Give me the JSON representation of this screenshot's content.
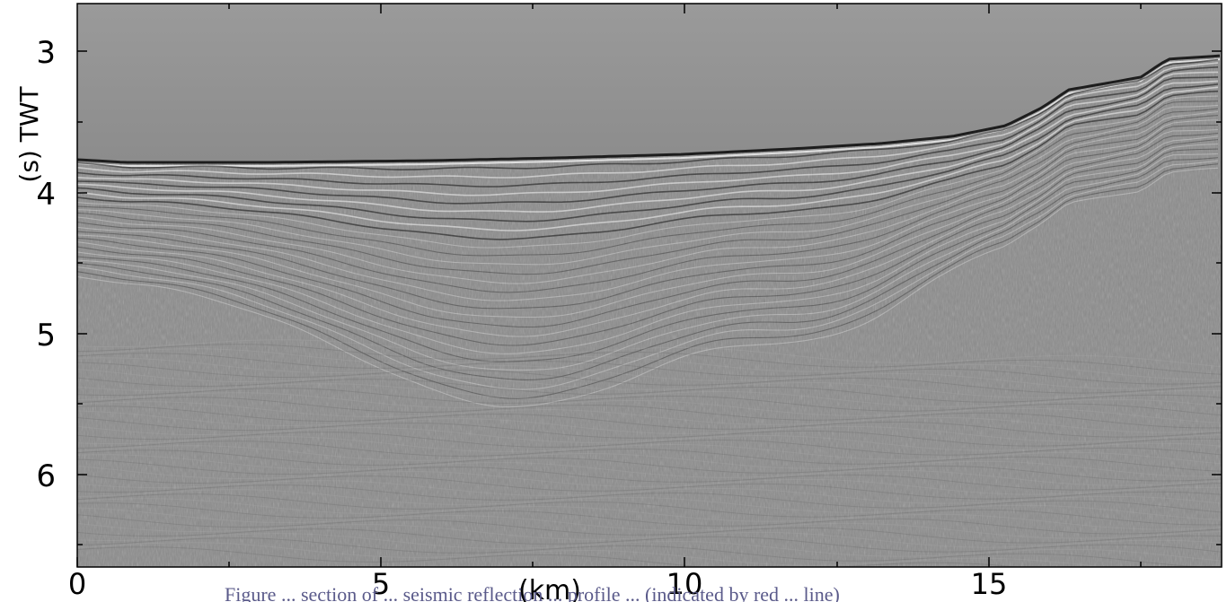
{
  "figure": {
    "y_axis_label": "(s) TWT",
    "x_axis_label": "(km)",
    "y_ticks": [
      "3",
      "4",
      "5",
      "6"
    ],
    "x_ticks": [
      "0",
      "5",
      "10",
      "15"
    ],
    "caption_fragment": "Figure ... section of ... seismic reflection ... profile ... (indicated by red ... line)"
  },
  "colors": {
    "background": "#ffffff",
    "seismic_base": "#8a8a8a",
    "water_column": "#9a9a9a",
    "reflector_dark": "#111111",
    "reflector_light": "#f2f2f2",
    "caption": "#5a5a8a"
  }
}
